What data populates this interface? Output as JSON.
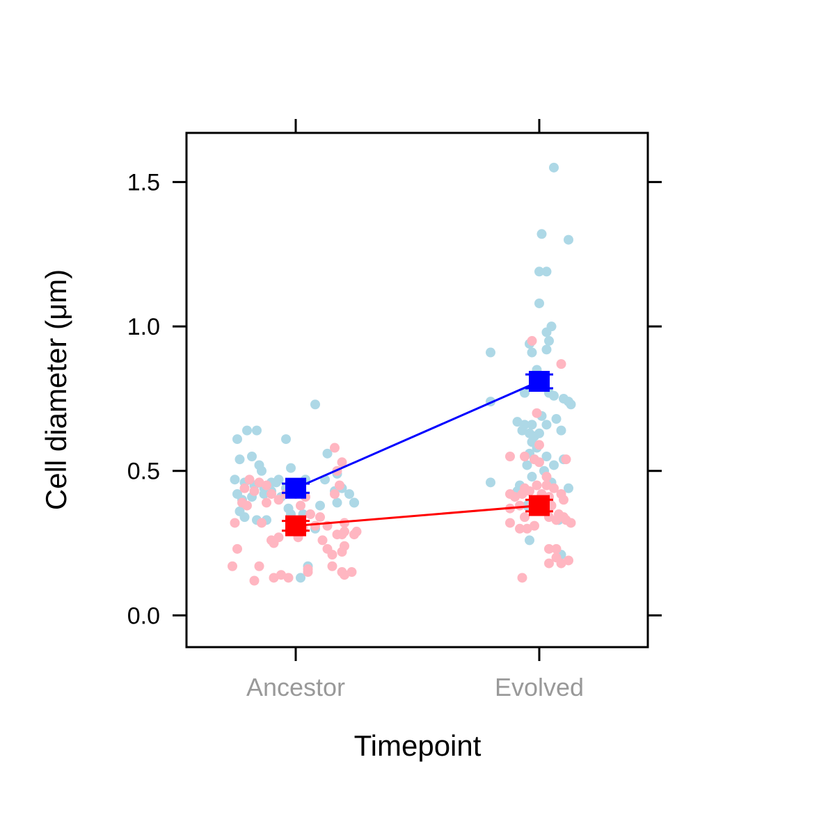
{
  "chart_data": {
    "type": "scatter",
    "title": "",
    "xlabel": "Timepoint",
    "ylabel": "Cell diameter (μm)",
    "categories": [
      "Ancestor",
      "Evolved"
    ],
    "ylim": [
      -0.11,
      1.67
    ],
    "yticks": [
      0.0,
      0.5,
      1.0,
      1.5
    ],
    "ytick_labels": [
      "0.0",
      "0.5",
      "1.0",
      "1.5"
    ],
    "grid": false,
    "legend": "none",
    "series": [
      {
        "color": "#add8e6",
        "summary_color": "#0000ff",
        "means": [
          0.44,
          0.81
        ],
        "se": [
          0.016,
          0.024
        ],
        "points": [
          [
            -0.24,
            0.61
          ],
          [
            -0.2,
            0.64
          ],
          [
            -0.16,
            0.64
          ],
          [
            -0.23,
            0.54
          ],
          [
            -0.18,
            0.55
          ],
          [
            -0.15,
            0.52
          ],
          [
            -0.14,
            0.5
          ],
          [
            -0.25,
            0.47
          ],
          [
            -0.21,
            0.46
          ],
          [
            -0.17,
            0.45
          ],
          [
            -0.13,
            0.44
          ],
          [
            -0.1,
            0.46
          ],
          [
            -0.07,
            0.47
          ],
          [
            -0.04,
            0.44
          ],
          [
            -0.02,
            0.51
          ],
          [
            -0.04,
            0.61
          ],
          [
            0.08,
            0.73
          ],
          [
            0.04,
            0.47
          ],
          [
            0.13,
            0.56
          ],
          [
            0.12,
            0.47
          ],
          [
            0.17,
            0.49
          ],
          [
            0.16,
            0.43
          ],
          [
            0.22,
            0.42
          ],
          [
            0.24,
            0.39
          ],
          [
            0.24,
            0.39
          ],
          [
            0.17,
            0.39
          ],
          [
            -0.24,
            0.42
          ],
          [
            -0.22,
            0.4
          ],
          [
            -0.18,
            0.41
          ],
          [
            -0.13,
            0.42
          ],
          [
            -0.1,
            0.43
          ],
          [
            -0.06,
            0.41
          ],
          [
            -0.03,
            0.37
          ],
          [
            -0.02,
            0.35
          ],
          [
            0.03,
            0.35
          ],
          [
            -0.23,
            0.36
          ],
          [
            -0.21,
            0.34
          ],
          [
            -0.16,
            0.33
          ],
          [
            -0.12,
            0.33
          ],
          [
            0.08,
            0.3
          ],
          [
            0.05,
            0.17
          ],
          [
            0.02,
            0.13
          ],
          [
            0.1,
            0.38
          ],
          [
            -0.08,
            0.46
          ],
          [
            0.19,
            0.44
          ],
          [
            0.06,
            1.55
          ],
          [
            0.01,
            1.32
          ],
          [
            0.12,
            1.3
          ],
          [
            0.0,
            1.19
          ],
          [
            0.03,
            1.19
          ],
          [
            0.0,
            1.08
          ],
          [
            0.05,
            1.0
          ],
          [
            0.03,
            0.98
          ],
          [
            0.04,
            0.95
          ],
          [
            -0.04,
            0.94
          ],
          [
            -0.2,
            0.91
          ],
          [
            0.03,
            0.92
          ],
          [
            -0.03,
            0.91
          ],
          [
            -0.01,
            0.85
          ],
          [
            -0.06,
            0.77
          ],
          [
            -0.2,
            0.74
          ],
          [
            0.04,
            0.77
          ],
          [
            0.06,
            0.76
          ],
          [
            0.1,
            0.75
          ],
          [
            0.12,
            0.74
          ],
          [
            0.13,
            0.73
          ],
          [
            0.01,
            0.69
          ],
          [
            0.07,
            0.68
          ],
          [
            -0.09,
            0.67
          ],
          [
            -0.06,
            0.66
          ],
          [
            -0.03,
            0.66
          ],
          [
            0.03,
            0.66
          ],
          [
            0.09,
            0.64
          ],
          [
            -0.07,
            0.64
          ],
          [
            -0.04,
            0.63
          ],
          [
            -0.02,
            0.62
          ],
          [
            0.0,
            0.63
          ],
          [
            -0.03,
            0.6
          ],
          [
            -0.01,
            0.58
          ],
          [
            -0.04,
            0.56
          ],
          [
            -0.02,
            0.54
          ],
          [
            0.03,
            0.55
          ],
          [
            0.06,
            0.52
          ],
          [
            0.1,
            0.54
          ],
          [
            -0.05,
            0.52
          ],
          [
            0.02,
            0.5
          ],
          [
            -0.03,
            0.48
          ],
          [
            -0.2,
            0.46
          ],
          [
            -0.08,
            0.45
          ],
          [
            0.05,
            0.46
          ],
          [
            0.12,
            0.44
          ],
          [
            -0.09,
            0.43
          ],
          [
            0.01,
            0.41
          ],
          [
            0.04,
            0.39
          ],
          [
            0.08,
            0.33
          ],
          [
            -0.05,
            0.38
          ],
          [
            -0.04,
            0.26
          ],
          [
            0.09,
            0.21
          ]
        ]
      },
      {
        "color": "#ffb6c1",
        "summary_color": "#ff0000",
        "means": [
          0.31,
          0.38
        ],
        "se": [
          0.017,
          0.02
        ],
        "points": [
          [
            0.16,
            0.58
          ],
          [
            0.19,
            0.53
          ],
          [
            0.17,
            0.5
          ],
          [
            0.18,
            0.45
          ],
          [
            0.16,
            0.42
          ],
          [
            -0.19,
            0.47
          ],
          [
            -0.15,
            0.46
          ],
          [
            -0.12,
            0.45
          ],
          [
            -0.17,
            0.43
          ],
          [
            -0.21,
            0.44
          ],
          [
            -0.1,
            0.42
          ],
          [
            -0.04,
            0.42
          ],
          [
            0.0,
            0.42
          ],
          [
            0.04,
            0.41
          ],
          [
            -0.07,
            0.4
          ],
          [
            -0.12,
            0.39
          ],
          [
            -0.22,
            0.39
          ],
          [
            -0.2,
            0.38
          ],
          [
            0.02,
            0.38
          ],
          [
            0.06,
            0.35
          ],
          [
            0.1,
            0.34
          ],
          [
            -0.25,
            0.32
          ],
          [
            -0.14,
            0.32
          ],
          [
            -0.02,
            0.3
          ],
          [
            0.03,
            0.3
          ],
          [
            0.08,
            0.31
          ],
          [
            0.13,
            0.31
          ],
          [
            0.2,
            0.32
          ],
          [
            0.2,
            0.29
          ],
          [
            0.24,
            0.28
          ],
          [
            0.25,
            0.29
          ],
          [
            0.17,
            0.28
          ],
          [
            0.19,
            0.28
          ],
          [
            -0.07,
            0.27
          ],
          [
            0.01,
            0.27
          ],
          [
            0.11,
            0.26
          ],
          [
            -0.1,
            0.26
          ],
          [
            -0.09,
            0.25
          ],
          [
            0.13,
            0.23
          ],
          [
            0.19,
            0.22
          ],
          [
            0.15,
            0.21
          ],
          [
            0.2,
            0.24
          ],
          [
            -0.24,
            0.23
          ],
          [
            -0.26,
            0.17
          ],
          [
            -0.15,
            0.17
          ],
          [
            -0.06,
            0.14
          ],
          [
            -0.03,
            0.13
          ],
          [
            0.05,
            0.15
          ],
          [
            0.05,
            0.16
          ],
          [
            0.15,
            0.17
          ],
          [
            0.19,
            0.15
          ],
          [
            0.23,
            0.15
          ],
          [
            0.2,
            0.14
          ],
          [
            -0.17,
            0.12
          ],
          [
            -0.09,
            0.13
          ],
          [
            0.0,
            0.29
          ],
          [
            -0.03,
            0.95
          ],
          [
            0.09,
            0.87
          ],
          [
            -0.01,
            0.7
          ],
          [
            0.0,
            0.59
          ],
          [
            -0.12,
            0.55
          ],
          [
            -0.06,
            0.55
          ],
          [
            0.11,
            0.54
          ],
          [
            0.0,
            0.53
          ],
          [
            -0.02,
            0.54
          ],
          [
            0.03,
            0.48
          ],
          [
            0.03,
            0.45
          ],
          [
            -0.06,
            0.44
          ],
          [
            -0.01,
            0.45
          ],
          [
            0.06,
            0.44
          ],
          [
            -0.12,
            0.42
          ],
          [
            -0.1,
            0.41
          ],
          [
            -0.07,
            0.42
          ],
          [
            -0.04,
            0.43
          ],
          [
            0.01,
            0.42
          ],
          [
            0.04,
            0.41
          ],
          [
            0.09,
            0.42
          ],
          [
            0.1,
            0.4
          ],
          [
            -0.12,
            0.37
          ],
          [
            -0.08,
            0.38
          ],
          [
            -0.03,
            0.38
          ],
          [
            0.05,
            0.38
          ],
          [
            -0.06,
            0.34
          ],
          [
            0.04,
            0.34
          ],
          [
            0.08,
            0.35
          ],
          [
            0.1,
            0.34
          ],
          [
            0.07,
            0.33
          ],
          [
            0.11,
            0.33
          ],
          [
            0.13,
            0.32
          ],
          [
            -0.12,
            0.32
          ],
          [
            -0.08,
            0.3
          ],
          [
            -0.05,
            0.3
          ],
          [
            -0.02,
            0.31
          ],
          [
            0.04,
            0.23
          ],
          [
            0.07,
            0.23
          ],
          [
            0.07,
            0.2
          ],
          [
            0.09,
            0.18
          ],
          [
            0.04,
            0.18
          ],
          [
            0.12,
            0.19
          ],
          [
            -0.07,
            0.13
          ]
        ]
      }
    ]
  }
}
